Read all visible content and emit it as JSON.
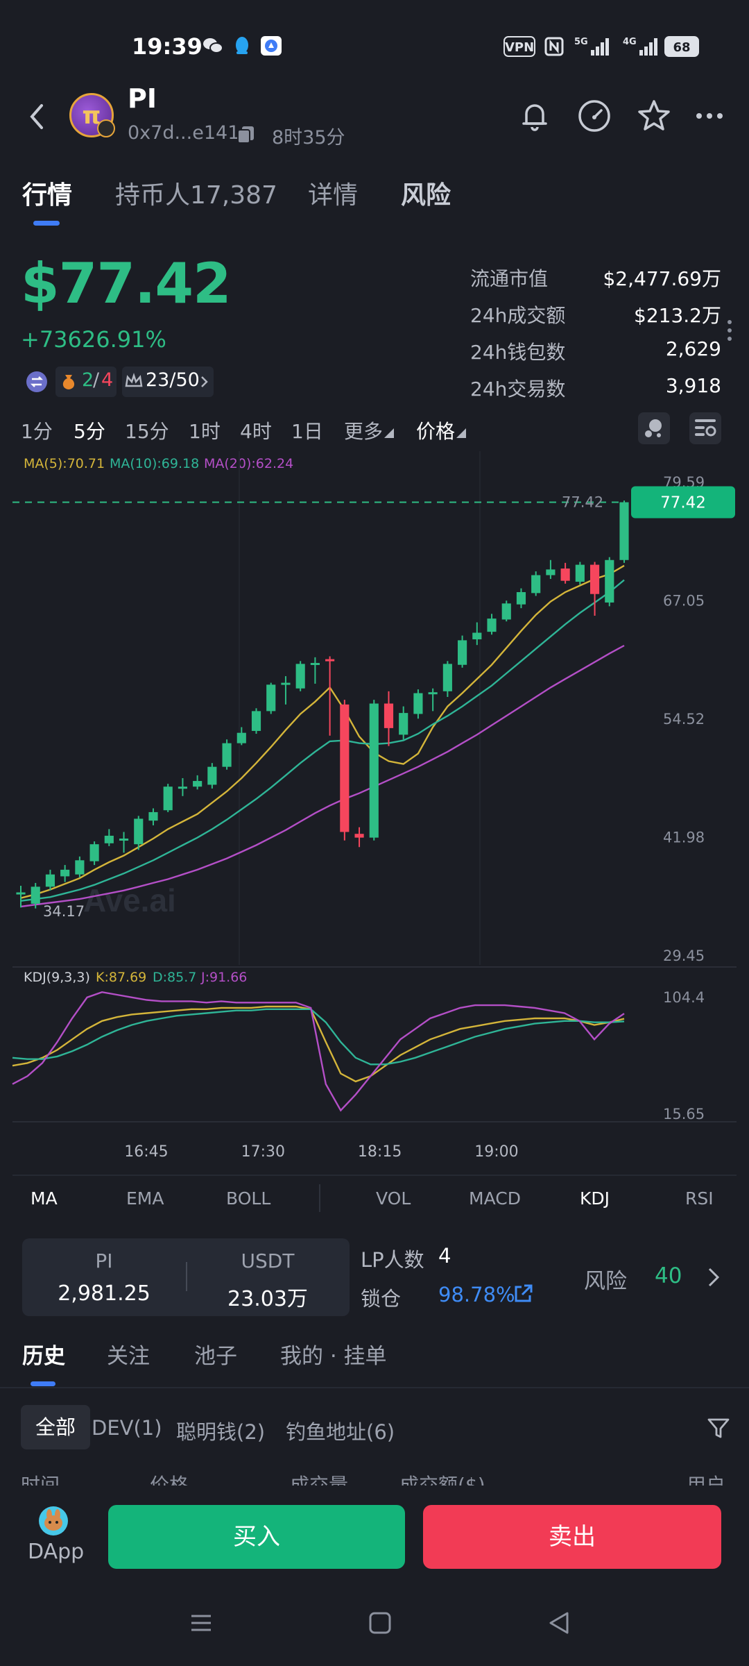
{
  "status_bar": {
    "time": "19:39",
    "vpn": "VPN",
    "net1": "5G",
    "net2": "4G",
    "battery": "68"
  },
  "header": {
    "symbol": "PI",
    "logo_letter": "π",
    "address": "0x7d...e141",
    "age": "8时35分"
  },
  "tabs": [
    {
      "label": "行情"
    },
    {
      "label": "持币人17,387"
    },
    {
      "label": "详情"
    },
    {
      "label": "风险"
    }
  ],
  "price": {
    "value": "$77.42",
    "change": "+73626.91%",
    "badge_ratio_a": "2",
    "badge_ratio_sep": "/",
    "badge_ratio_b": "4",
    "rank": "23/50"
  },
  "stats": [
    {
      "label": "流通市值",
      "value": "$2,477.69万"
    },
    {
      "label": "24h成交额",
      "value": "$213.2万"
    },
    {
      "label": "24h钱包数",
      "value": "2,629"
    },
    {
      "label": "24h交易数",
      "value": "3,918"
    }
  ],
  "timeframes": [
    "1分",
    "5分",
    "15分",
    "1时",
    "4时",
    "1日",
    "更多",
    "价格"
  ],
  "chart_labels": {
    "ma5": "MA(5):70.71",
    "ma10": "MA(10):69.18",
    "ma20": "MA(20):62.24",
    "kdj": "KDJ(9,3,3)",
    "k": "K:87.69",
    "d": "D:85.7",
    "j": "J:91.66",
    "watermark": "Ave.ai",
    "price_tag": "77.42",
    "price_line_label": "77.42",
    "low_marker": "34.17"
  },
  "chart_data": {
    "type": "candlestick",
    "x_ticks": [
      "16:45",
      "17:30",
      "18:15",
      "19:00"
    ],
    "y_ticks": [
      79.59,
      67.05,
      54.52,
      41.98,
      29.45
    ],
    "ylim": [
      29.45,
      79.59
    ],
    "last_price": 77.42,
    "low_label": 34.17,
    "candles": [
      {
        "o": 36.0,
        "c": 36.1,
        "h": 36.8,
        "l": 34.5
      },
      {
        "o": 34.9,
        "c": 36.7,
        "h": 37.1,
        "l": 34.4
      },
      {
        "o": 36.7,
        "c": 38.0,
        "h": 38.5,
        "l": 36.3
      },
      {
        "o": 37.8,
        "c": 38.5,
        "h": 39.0,
        "l": 37.2
      },
      {
        "o": 38.0,
        "c": 39.5,
        "h": 39.9,
        "l": 37.7
      },
      {
        "o": 39.4,
        "c": 41.2,
        "h": 41.5,
        "l": 39.0
      },
      {
        "o": 41.3,
        "c": 42.1,
        "h": 42.8,
        "l": 41.0
      },
      {
        "o": 41.7,
        "c": 41.8,
        "h": 42.5,
        "l": 40.3
      },
      {
        "o": 41.2,
        "c": 43.9,
        "h": 44.2,
        "l": 40.6
      },
      {
        "o": 43.7,
        "c": 44.6,
        "h": 45.0,
        "l": 43.2
      },
      {
        "o": 44.8,
        "c": 47.3,
        "h": 47.6,
        "l": 44.6
      },
      {
        "o": 47.2,
        "c": 47.3,
        "h": 48.2,
        "l": 46.3
      },
      {
        "o": 47.3,
        "c": 47.9,
        "h": 48.5,
        "l": 47.0
      },
      {
        "o": 47.5,
        "c": 49.4,
        "h": 49.8,
        "l": 47.1
      },
      {
        "o": 49.4,
        "c": 51.9,
        "h": 52.3,
        "l": 49.1
      },
      {
        "o": 51.9,
        "c": 53.0,
        "h": 53.6,
        "l": 51.7
      },
      {
        "o": 53.2,
        "c": 55.3,
        "h": 55.6,
        "l": 52.9
      },
      {
        "o": 55.3,
        "c": 58.1,
        "h": 58.3,
        "l": 55.0
      },
      {
        "o": 58.2,
        "c": 58.3,
        "h": 59.0,
        "l": 56.0
      },
      {
        "o": 57.7,
        "c": 60.3,
        "h": 60.6,
        "l": 57.4
      },
      {
        "o": 60.2,
        "c": 60.4,
        "h": 61.0,
        "l": 58.2
      },
      {
        "o": 60.8,
        "c": 60.6,
        "h": 61.1,
        "l": 52.7
      },
      {
        "o": 56.0,
        "c": 42.5,
        "h": 56.5,
        "l": 41.6
      },
      {
        "o": 42.3,
        "c": 41.9,
        "h": 43.0,
        "l": 40.9
      },
      {
        "o": 41.9,
        "c": 56.1,
        "h": 56.5,
        "l": 41.6
      },
      {
        "o": 56.1,
        "c": 53.5,
        "h": 57.4,
        "l": 51.6
      },
      {
        "o": 52.8,
        "c": 55.1,
        "h": 55.8,
        "l": 52.3
      },
      {
        "o": 55.0,
        "c": 57.2,
        "h": 57.6,
        "l": 54.5
      },
      {
        "o": 57.1,
        "c": 57.3,
        "h": 57.7,
        "l": 55.3
      },
      {
        "o": 57.4,
        "c": 60.3,
        "h": 60.6,
        "l": 56.8
      },
      {
        "o": 60.2,
        "c": 62.8,
        "h": 63.3,
        "l": 59.9
      },
      {
        "o": 62.9,
        "c": 63.6,
        "h": 64.7,
        "l": 62.3
      },
      {
        "o": 63.7,
        "c": 65.1,
        "h": 65.6,
        "l": 63.4
      },
      {
        "o": 65.0,
        "c": 66.7,
        "h": 67.0,
        "l": 64.8
      },
      {
        "o": 66.6,
        "c": 67.9,
        "h": 68.3,
        "l": 66.2
      },
      {
        "o": 67.8,
        "c": 69.7,
        "h": 70.1,
        "l": 67.5
      },
      {
        "o": 69.7,
        "c": 70.3,
        "h": 71.3,
        "l": 69.3
      },
      {
        "o": 70.4,
        "c": 69.1,
        "h": 71.0,
        "l": 68.8
      },
      {
        "o": 69.0,
        "c": 70.8,
        "h": 71.1,
        "l": 68.7
      },
      {
        "o": 70.8,
        "c": 67.7,
        "h": 71.1,
        "l": 65.4
      },
      {
        "o": 66.8,
        "c": 71.3,
        "h": 71.6,
        "l": 66.4
      },
      {
        "o": 71.3,
        "c": 77.42,
        "h": 77.6,
        "l": 71.0
      }
    ],
    "series": [
      {
        "name": "MA(5)",
        "color": "#d4b53a",
        "values": [
          35.5,
          35.9,
          36.4,
          37.0,
          37.6,
          38.5,
          39.3,
          40.0,
          40.9,
          41.8,
          42.8,
          43.6,
          44.4,
          45.6,
          46.8,
          48.2,
          49.8,
          51.5,
          53.3,
          55.0,
          56.3,
          57.8,
          55.4,
          52.6,
          50.9,
          50.0,
          49.7,
          50.8,
          53.6,
          55.8,
          57.2,
          58.7,
          60.2,
          62.0,
          63.8,
          65.5,
          66.9,
          67.9,
          68.6,
          69.3,
          69.8,
          70.71
        ]
      },
      {
        "name": "MA(10)",
        "color": "#2fb597",
        "values": [
          35.2,
          35.4,
          35.6,
          36.0,
          36.4,
          36.9,
          37.5,
          38.1,
          38.8,
          39.5,
          40.3,
          41.1,
          41.9,
          42.8,
          43.8,
          44.9,
          46.0,
          47.2,
          48.5,
          49.8,
          51.0,
          52.1,
          52.2,
          51.9,
          51.8,
          51.9,
          52.2,
          52.9,
          53.9,
          54.8,
          55.8,
          56.9,
          58.0,
          59.3,
          60.6,
          61.9,
          63.2,
          64.5,
          65.7,
          66.8,
          67.9,
          69.18
        ]
      },
      {
        "name": "MA(20)",
        "color": "#b44fc7",
        "values": [
          34.6,
          34.8,
          35.0,
          35.2,
          35.4,
          35.7,
          36.0,
          36.3,
          36.7,
          37.1,
          37.5,
          38.0,
          38.5,
          39.1,
          39.7,
          40.4,
          41.1,
          41.9,
          42.7,
          43.6,
          44.5,
          45.3,
          46.0,
          46.6,
          47.3,
          48.0,
          48.7,
          49.4,
          50.2,
          51.0,
          51.9,
          52.8,
          53.8,
          54.8,
          55.8,
          56.8,
          57.8,
          58.7,
          59.6,
          60.5,
          61.4,
          62.24
        ]
      }
    ],
    "kdj": {
      "ylim": [
        15.65,
        104.4
      ],
      "y_ticks": [
        104.4,
        15.65
      ],
      "K": [
        52,
        54,
        58,
        64,
        72,
        80,
        86,
        89,
        91,
        92,
        93,
        94,
        95,
        95,
        96,
        96,
        96,
        97,
        97,
        97,
        95,
        70,
        46,
        40,
        44,
        52,
        60,
        66,
        72,
        76,
        80,
        82,
        84,
        86,
        87,
        88,
        88,
        88,
        86,
        83,
        85,
        87.69
      ],
      "D": [
        58,
        57,
        57,
        59,
        63,
        68,
        74,
        79,
        83,
        86,
        88,
        90,
        91,
        92,
        93,
        94,
        94,
        95,
        95,
        95,
        95,
        85,
        70,
        58,
        53,
        53,
        55,
        58,
        62,
        66,
        70,
        74,
        77,
        80,
        82,
        84,
        85,
        86,
        86,
        85,
        85,
        85.7
      ],
      "J": [
        38,
        44,
        54,
        70,
        88,
        104,
        108,
        106,
        104,
        102,
        101,
        101,
        101,
        100,
        101,
        100,
        100,
        100,
        100,
        100,
        96,
        38,
        18,
        30,
        44,
        58,
        72,
        80,
        88,
        92,
        96,
        98,
        98,
        98,
        97,
        96,
        94,
        92,
        86,
        72,
        84,
        91.66
      ]
    }
  },
  "indicators": [
    "MA",
    "EMA",
    "BOLL",
    "VOL",
    "MACD",
    "KDJ",
    "RSI"
  ],
  "pool": {
    "token_a": "PI",
    "token_a_amount": "2,981.25",
    "token_b": "USDT",
    "token_b_amount": "23.03万",
    "lp_label": "LP人数",
    "lp_count": "4",
    "lock_label": "锁仓",
    "lock_value": "98.78%",
    "risk_label": "风险",
    "risk_value": "40"
  },
  "subtabs": [
    "历史",
    "关注",
    "池子",
    "我的 · 挂单"
  ],
  "filters": [
    "全部",
    "DEV(1)",
    "聪明钱(2)",
    "钓鱼地址(6)"
  ],
  "table_headers": [
    "时间",
    "价格",
    "成交量",
    "成交额($)",
    "用户"
  ],
  "bottom": {
    "dapp": "DApp",
    "buy": "买入",
    "sell": "卖出"
  },
  "colors": {
    "up": "#2ebd85",
    "down": "#f6465d",
    "accent": "#3f7cf6",
    "background": "#1b1d24"
  }
}
